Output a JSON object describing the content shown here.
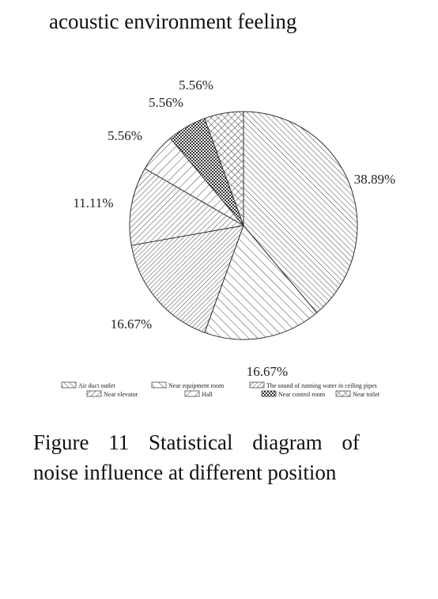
{
  "header": {
    "text": "acoustic environment feeling"
  },
  "chart_data": {
    "type": "pie",
    "title": "",
    "slices": [
      {
        "label": "Air duct outlet",
        "value": 38.89,
        "label_text": "38.89%",
        "pattern": "diag-fwd-dense"
      },
      {
        "label": "Near equipment room",
        "value": 16.67,
        "label_text": "16.67%",
        "pattern": "diag-fwd-wide"
      },
      {
        "label": "The sound of running water in ceiling pipes",
        "value": 16.67,
        "label_text": "16.67%",
        "pattern": "diag-back-dense"
      },
      {
        "label": "Near elevator",
        "value": 11.11,
        "label_text": "11.11%",
        "pattern": "diag-back-med"
      },
      {
        "label": "Hall",
        "value": 5.56,
        "label_text": "5.56%",
        "pattern": "diag-back-wide"
      },
      {
        "label": "Near control room",
        "value": 5.56,
        "label_text": "5.56%",
        "pattern": "checker"
      },
      {
        "label": "Near toilet",
        "value": 5.56,
        "label_text": "5.56%",
        "pattern": "crosshatch"
      }
    ],
    "legend": {
      "placement": "bottom",
      "rows": [
        [
          "Air duct outlet",
          "Near equipment room",
          "The sound of running water in ceiling pipes"
        ],
        [
          "Near elevator",
          "Hall",
          "Near control room",
          "Near toilet"
        ]
      ]
    }
  },
  "caption": {
    "line1": "Figure 11 Statistical diagram of",
    "line2": "noise influence at different position"
  }
}
